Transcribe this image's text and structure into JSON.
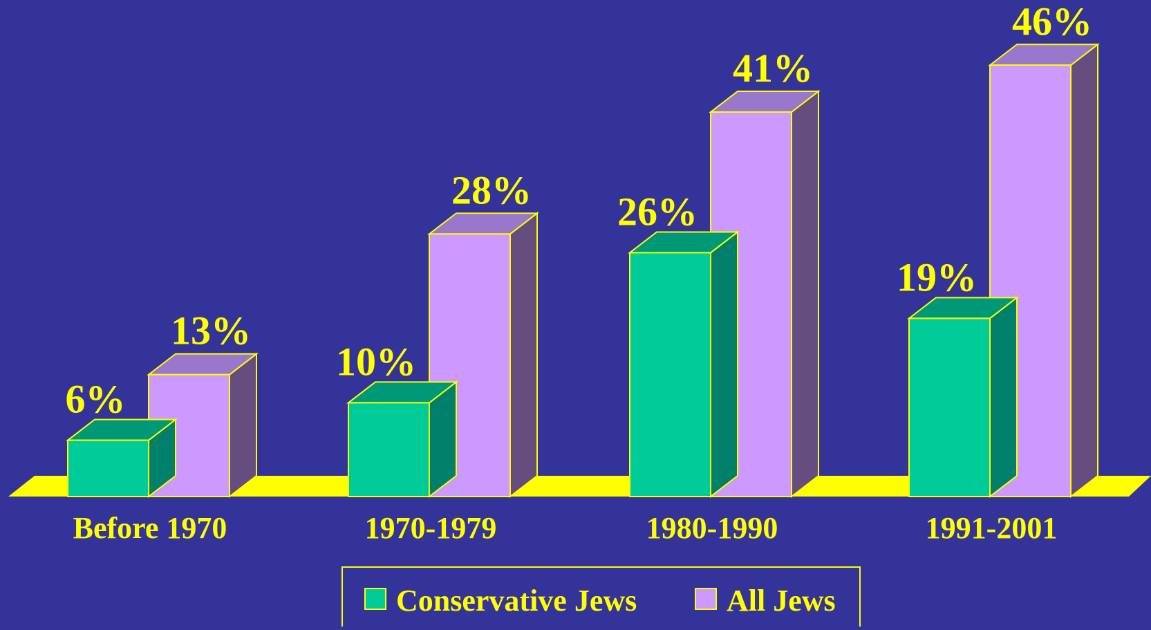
{
  "chart_data": {
    "type": "bar",
    "categories": [
      "Before 1970",
      "1970-1979",
      "1980-1990",
      "1991-2001"
    ],
    "series": [
      {
        "name": "Conservative Jews",
        "values": [
          6,
          10,
          26,
          19
        ],
        "labels": [
          "6%",
          "10%",
          "26%",
          "19%"
        ],
        "color": "#00CC99",
        "top_color": "#009977",
        "side_color": "#00806A"
      },
      {
        "name": "All Jews",
        "values": [
          13,
          28,
          41,
          46
        ],
        "labels": [
          "13%",
          "28%",
          "41%",
          "46%"
        ],
        "color": "#CC99FF",
        "top_color": "#9977CC",
        "side_color": "#664D80"
      }
    ],
    "ylim": [
      0,
      50
    ],
    "grid": false,
    "legend_position": "bottom-center",
    "colors": {
      "background": "#333399",
      "text": "#FFFF00",
      "floor": "#FFFF00",
      "outline": "#FFFF00"
    }
  }
}
